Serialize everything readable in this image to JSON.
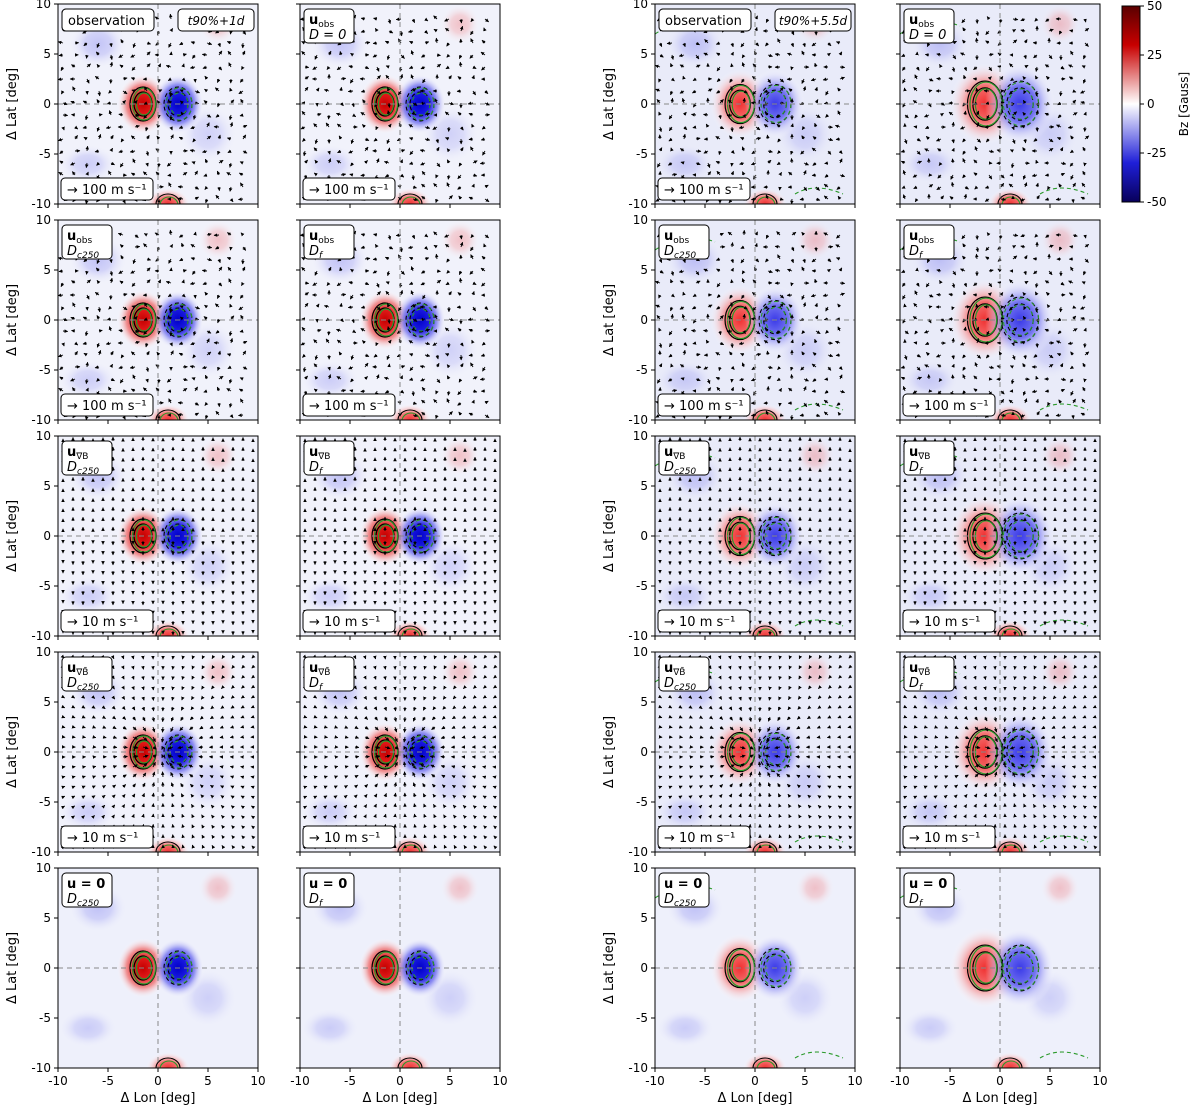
{
  "chart_data": {
    "type": "heatmap",
    "title": "",
    "xlabel": "Δ Lon [deg]",
    "ylabel": "Δ Lat [deg]",
    "xlim": [
      -10,
      10
    ],
    "ylim": [
      -10,
      10
    ],
    "xticks": [
      -10,
      -5,
      0,
      5,
      10
    ],
    "yticks": [
      -10,
      -5,
      0,
      5,
      10
    ],
    "colorbar": {
      "label": "B_z [Gauss]",
      "label_text": "Bz [Gauss]",
      "range": [
        -50,
        50
      ],
      "ticks": [
        50,
        25,
        0,
        -25,
        -50
      ],
      "colormap": [
        "#08005a",
        "#1f1fd8",
        "#ffffff",
        "#e01f1f",
        "#5a0000"
      ]
    },
    "time_labels": {
      "left": "t90%+1d",
      "right": "t90%+5.5d"
    },
    "rows": [
      {
        "velocity_field": "u_obs",
        "diffusion_left": "",
        "diffusion_right": "D=0",
        "arrow_scale": "100 m s^-1",
        "panels": [
          {
            "label_line1": "observation",
            "label_line2": "",
            "time": "t90%+1d",
            "ref_arrow": "→ 100 m s⁻¹"
          },
          {
            "label_line1": "u_obs",
            "label_line2": "D = 0",
            "time": "",
            "ref_arrow": "→ 100 m s⁻¹"
          },
          {
            "label_line1": "observation",
            "label_line2": "",
            "time": "t90%+5.5d",
            "ref_arrow": "→ 100 m s⁻¹"
          },
          {
            "label_line1": "u_obs",
            "label_line2": "D = 0",
            "time": "",
            "ref_arrow": ""
          }
        ]
      },
      {
        "velocity_field": "u_obs",
        "arrow_scale": "100 m s^-1",
        "panels": [
          {
            "label_line1": "u_obs",
            "label_line2": "D_c250",
            "ref_arrow": "→ 100 m s⁻¹"
          },
          {
            "label_line1": "u_obs",
            "label_line2": "D_f",
            "ref_arrow": "→ 100 m s⁻¹"
          },
          {
            "label_line1": "u_obs",
            "label_line2": "D_c250",
            "ref_arrow": "→ 100 m s⁻¹"
          },
          {
            "label_line1": "u_obs",
            "label_line2": "D_f",
            "ref_arrow": "→ 100 m s⁻¹"
          }
        ]
      },
      {
        "velocity_field": "u_∇B",
        "arrow_scale": "10 m s^-1",
        "panels": [
          {
            "label_line1": "u_∇B",
            "label_line2": "D_c250",
            "ref_arrow": "→ 10 m s⁻¹"
          },
          {
            "label_line1": "u_∇B",
            "label_line2": "D_f",
            "ref_arrow": "→ 10 m s⁻¹"
          },
          {
            "label_line1": "u_∇B",
            "label_line2": "D_c250",
            "ref_arrow": "→ 10 m s⁻¹"
          },
          {
            "label_line1": "u_∇B",
            "label_line2": "D_f",
            "ref_arrow": "→ 10 m s⁻¹"
          }
        ]
      },
      {
        "velocity_field": "u_∇B̄",
        "arrow_scale": "10 m s^-1",
        "panels": [
          {
            "label_line1": "u_∇B̄",
            "label_line2": "D_c250",
            "ref_arrow": "→ 10 m s⁻¹"
          },
          {
            "label_line1": "u_∇B̄",
            "label_line2": "D_f",
            "ref_arrow": "→ 10 m s⁻¹"
          },
          {
            "label_line1": "u_∇B̄",
            "label_line2": "D_c250",
            "ref_arrow": "→ 10 m s⁻¹"
          },
          {
            "label_line1": "u_∇B̄",
            "label_line2": "D_f",
            "ref_arrow": "→ 10 m s⁻¹"
          }
        ]
      },
      {
        "velocity_field": "u = 0",
        "arrow_scale": "",
        "panels": [
          {
            "label_line1": "u = 0",
            "label_line2": "D_c250",
            "ref_arrow": ""
          },
          {
            "label_line1": "u = 0",
            "label_line2": "D_f",
            "ref_arrow": ""
          },
          {
            "label_line1": "u = 0",
            "label_line2": "D_c250",
            "ref_arrow": ""
          },
          {
            "label_line1": "u = 0",
            "label_line2": "D_f",
            "ref_arrow": ""
          }
        ]
      }
    ],
    "features": {
      "positive_spot_center": [
        -1.5,
        0
      ],
      "negative_spot_center": [
        2,
        0
      ],
      "secondary_positive_spot_center": [
        1,
        -10
      ],
      "peak_field_gauss": [
        50,
        -50
      ]
    }
  }
}
